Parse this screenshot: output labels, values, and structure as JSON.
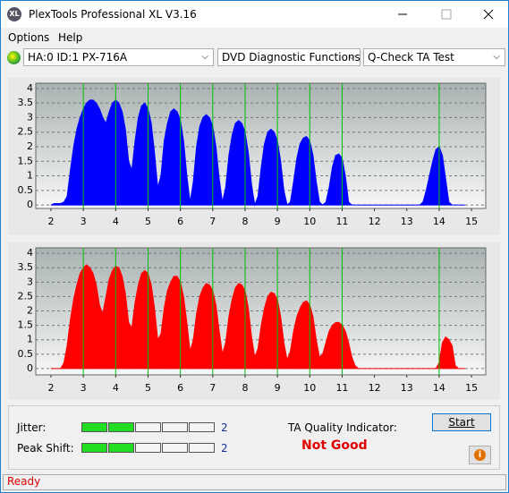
{
  "window": {
    "icon_text": "XL",
    "title": "PlexTools Professional XL V3.16"
  },
  "menu": [
    "Options",
    "Help"
  ],
  "toolbar": {
    "drive": "HA:0 ID:1  PX-716A",
    "function": "DVD Diagnostic Functions",
    "test": "Q-Check TA Test"
  },
  "chart_data": [
    {
      "type": "area",
      "color": "#0000ff",
      "grid": true,
      "marker_color": "#00c000",
      "x": [
        2,
        2.1,
        2.2,
        2.3,
        2.4,
        2.5,
        2.6,
        2.7,
        2.8,
        2.9,
        3,
        3.1,
        3.2,
        3.3,
        3.4,
        3.5,
        3.6,
        3.7,
        3.8,
        3.9,
        4,
        4.1,
        4.2,
        4.3,
        4.4,
        4.5,
        4.6,
        4.7,
        4.8,
        4.9,
        5,
        5.1,
        5.2,
        5.3,
        5.4,
        5.5,
        5.6,
        5.7,
        5.8,
        5.9,
        6,
        6.1,
        6.2,
        6.3,
        6.4,
        6.5,
        6.6,
        6.7,
        6.8,
        6.9,
        7,
        7.1,
        7.2,
        7.3,
        7.4,
        7.5,
        7.6,
        7.7,
        7.8,
        7.9,
        8,
        8.1,
        8.2,
        8.3,
        8.4,
        8.5,
        8.6,
        8.7,
        8.8,
        8.9,
        9,
        9.1,
        9.2,
        9.3,
        9.4,
        9.5,
        9.6,
        9.7,
        9.8,
        9.9,
        10,
        10.1,
        10.2,
        10.3,
        10.4,
        10.5,
        10.6,
        10.7,
        10.8,
        10.9,
        11,
        11.1,
        11.2,
        11.3,
        11.4,
        11.5,
        11.6,
        11.7,
        11.8,
        11.9,
        12,
        12.1,
        12.2,
        12.3,
        12.4,
        12.5,
        12.6,
        12.7,
        12.8,
        12.9,
        13,
        13.1,
        13.2,
        13.3,
        13.4,
        13.5,
        13.6,
        13.7,
        13.8,
        13.9,
        14,
        14.1,
        14.2,
        14.3,
        14.4,
        14.5,
        14.6,
        14.7,
        14.8
      ],
      "values": [
        0,
        0.05,
        0.05,
        0.05,
        0.1,
        0.3,
        1.2,
        2.0,
        2.6,
        3.0,
        3.3,
        3.5,
        3.6,
        3.6,
        3.5,
        3.3,
        3.0,
        2.8,
        3.2,
        3.5,
        3.6,
        3.5,
        3.2,
        2.6,
        1.5,
        1.2,
        2.2,
        3.0,
        3.4,
        3.5,
        3.3,
        2.8,
        1.8,
        0.6,
        1.0,
        2.2,
        2.8,
        3.2,
        3.3,
        3.2,
        2.9,
        2.2,
        1.0,
        0.1,
        0.8,
        2.0,
        2.7,
        3.0,
        3.1,
        3.0,
        2.7,
        2.0,
        0.9,
        0.1,
        0.6,
        1.7,
        2.4,
        2.8,
        2.9,
        2.8,
        2.5,
        1.8,
        0.7,
        0,
        0.3,
        1.3,
        2.1,
        2.5,
        2.6,
        2.5,
        2.2,
        1.5,
        0.5,
        0,
        0.1,
        0.8,
        1.6,
        2.1,
        2.3,
        2.35,
        2.2,
        1.7,
        0.8,
        0.1,
        0,
        0.1,
        0.6,
        1.3,
        1.7,
        1.75,
        1.6,
        1.0,
        0.1,
        0,
        0,
        0,
        0,
        0,
        0,
        0,
        0,
        0,
        0,
        0,
        0,
        0,
        0,
        0,
        0,
        0,
        0,
        0,
        0,
        0,
        0,
        0.1,
        0.5,
        1.0,
        1.5,
        1.9,
        2.0,
        1.7,
        0.9,
        0.1,
        0,
        0,
        0,
        0,
        0
      ],
      "markers": [
        3,
        4,
        5,
        6,
        7,
        8,
        9,
        10,
        11,
        14
      ],
      "xlim": [
        1.53,
        15.44
      ],
      "xticks": [
        2,
        3,
        4,
        5,
        6,
        7,
        8,
        9,
        10,
        11,
        12,
        13,
        14,
        15
      ],
      "ylim": [
        -0.12,
        4.18
      ],
      "yticks": [
        4,
        3.5,
        3,
        2.5,
        2,
        1.5,
        1,
        0.5,
        0
      ]
    },
    {
      "type": "area",
      "color": "#ff0000",
      "grid": true,
      "marker_color": "#00c000",
      "x": [
        2,
        2.1,
        2.2,
        2.3,
        2.4,
        2.5,
        2.6,
        2.7,
        2.8,
        2.9,
        3,
        3.1,
        3.2,
        3.3,
        3.4,
        3.5,
        3.6,
        3.7,
        3.8,
        3.9,
        4,
        4.1,
        4.2,
        4.3,
        4.4,
        4.5,
        4.6,
        4.7,
        4.8,
        4.9,
        5,
        5.1,
        5.2,
        5.3,
        5.4,
        5.5,
        5.6,
        5.7,
        5.8,
        5.9,
        6,
        6.1,
        6.2,
        6.3,
        6.4,
        6.5,
        6.6,
        6.7,
        6.8,
        6.9,
        7,
        7.1,
        7.2,
        7.3,
        7.4,
        7.5,
        7.6,
        7.7,
        7.8,
        7.9,
        8,
        8.1,
        8.2,
        8.3,
        8.4,
        8.5,
        8.6,
        8.7,
        8.8,
        8.9,
        9,
        9.1,
        9.2,
        9.3,
        9.4,
        9.5,
        9.6,
        9.7,
        9.8,
        9.9,
        10,
        10.1,
        10.2,
        10.3,
        10.4,
        10.5,
        10.6,
        10.7,
        10.8,
        10.9,
        11,
        11.1,
        11.2,
        11.3,
        11.4,
        11.5,
        11.6,
        11.7,
        11.8,
        11.9,
        12,
        12.1,
        12.2,
        12.3,
        12.4,
        12.5,
        12.6,
        12.7,
        12.8,
        12.9,
        13,
        13.1,
        13.2,
        13.3,
        13.4,
        13.5,
        13.6,
        13.7,
        13.8,
        13.9,
        14,
        14.1,
        14.2,
        14.3,
        14.4,
        14.5,
        14.6,
        14.7,
        14.8
      ],
      "values": [
        0,
        0,
        0,
        0,
        0.2,
        0.8,
        1.7,
        2.4,
        2.9,
        3.3,
        3.5,
        3.6,
        3.5,
        3.3,
        2.9,
        2.2,
        1.9,
        2.5,
        3.1,
        3.4,
        3.55,
        3.5,
        3.2,
        2.6,
        1.6,
        1.4,
        2.3,
        2.9,
        3.3,
        3.4,
        3.3,
        2.9,
        2.1,
        1.0,
        1.2,
        2.1,
        2.7,
        3.0,
        3.2,
        3.2,
        3.0,
        2.5,
        1.6,
        0.6,
        1.0,
        1.9,
        2.5,
        2.8,
        2.95,
        2.9,
        2.7,
        2.2,
        1.3,
        0.5,
        0.9,
        1.8,
        2.4,
        2.8,
        2.95,
        2.9,
        2.7,
        2.1,
        1.1,
        0.4,
        0.7,
        1.5,
        2.1,
        2.5,
        2.65,
        2.6,
        2.4,
        1.8,
        0.9,
        0.3,
        0.6,
        1.3,
        1.8,
        2.1,
        2.3,
        2.35,
        2.2,
        1.8,
        1.0,
        0.4,
        0.5,
        0.9,
        1.3,
        1.5,
        1.6,
        1.6,
        1.5,
        1.3,
        0.9,
        0.4,
        0.1,
        0,
        0,
        0,
        0,
        0,
        0,
        0,
        0,
        0,
        0,
        0,
        0,
        0,
        0,
        0,
        0,
        0,
        0,
        0,
        0,
        0,
        0,
        0,
        0,
        0,
        0.2,
        0.9,
        1.1,
        1.0,
        0.8,
        0.1,
        0,
        0,
        0
      ],
      "markers": [
        3,
        4,
        5,
        6,
        7,
        8,
        9,
        10,
        11,
        14
      ],
      "xlim": [
        1.53,
        15.44
      ],
      "xticks": [
        2,
        3,
        4,
        5,
        6,
        7,
        8,
        9,
        10,
        11,
        12,
        13,
        14,
        15
      ],
      "ylim": [
        -0.22,
        4.19
      ],
      "yticks": [
        4,
        3.5,
        3,
        2.5,
        2,
        1.5,
        1,
        0.5,
        0
      ]
    }
  ],
  "panel": {
    "jitter": {
      "label": "Jitter:",
      "value": 2,
      "max": 5
    },
    "peak_shift": {
      "label": "Peak Shift:",
      "value": 2,
      "max": 5
    },
    "ta_label": "TA Quality Indicator:",
    "ta_result": "Not Good",
    "start": "Start"
  },
  "status": "Ready"
}
